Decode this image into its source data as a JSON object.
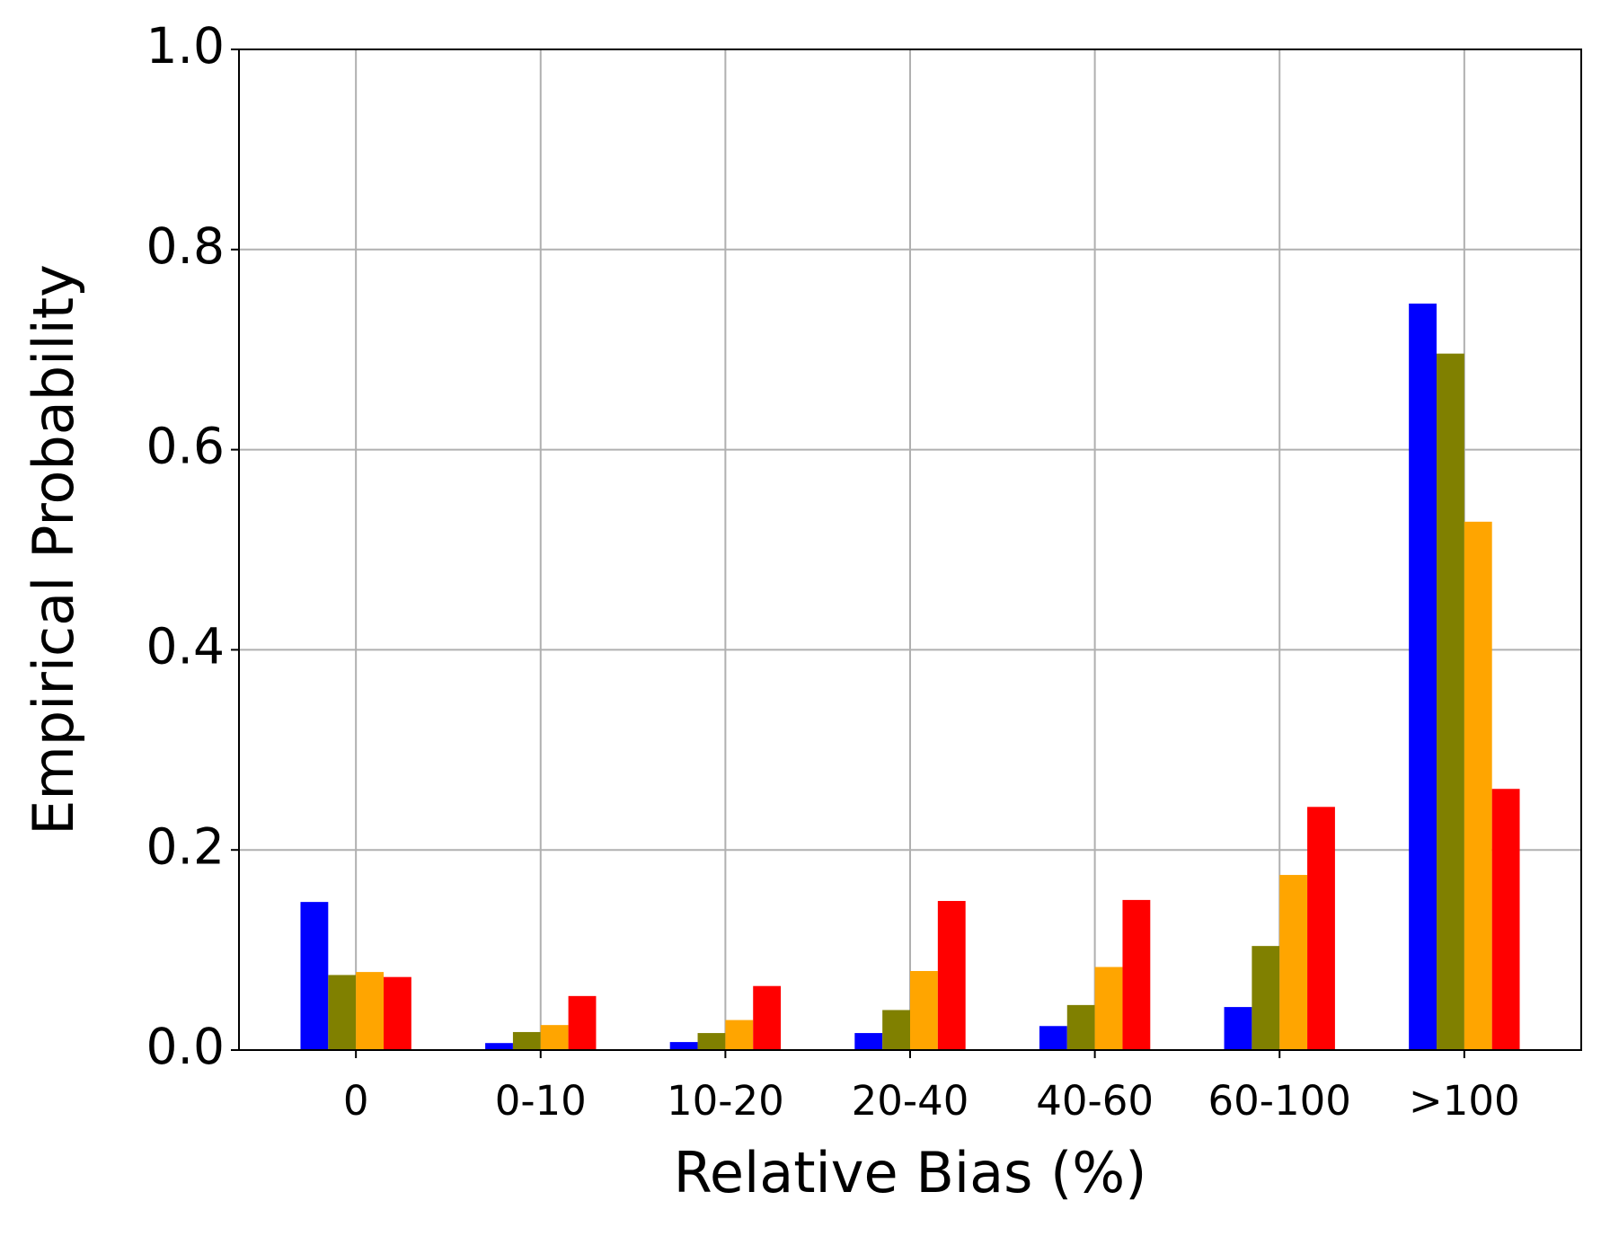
{
  "chart_data": {
    "type": "bar",
    "xlabel": "Relative Bias (%)",
    "ylabel": "Empirical Probability",
    "categories": [
      "0",
      "0-10",
      "10-20",
      "20-40",
      "40-60",
      "60-100",
      ">100"
    ],
    "series": [
      {
        "color": "#0000ff",
        "values": [
          0.148,
          0.007,
          0.008,
          0.017,
          0.024,
          0.043,
          0.746
        ]
      },
      {
        "color": "#808000",
        "values": [
          0.075,
          0.018,
          0.017,
          0.04,
          0.045,
          0.104,
          0.696
        ]
      },
      {
        "color": "#ffa500",
        "values": [
          0.078,
          0.025,
          0.03,
          0.079,
          0.083,
          0.175,
          0.528
        ]
      },
      {
        "color": "#ff0000",
        "values": [
          0.073,
          0.054,
          0.064,
          0.149,
          0.15,
          0.243,
          0.261
        ]
      }
    ],
    "ylim": [
      0,
      1
    ],
    "yticks": [
      {
        "value": 0,
        "label": "0.0"
      },
      0.2,
      0.4,
      0.6,
      0.8,
      {
        "value": 1,
        "label": "1.0"
      }
    ],
    "grid": true
  }
}
